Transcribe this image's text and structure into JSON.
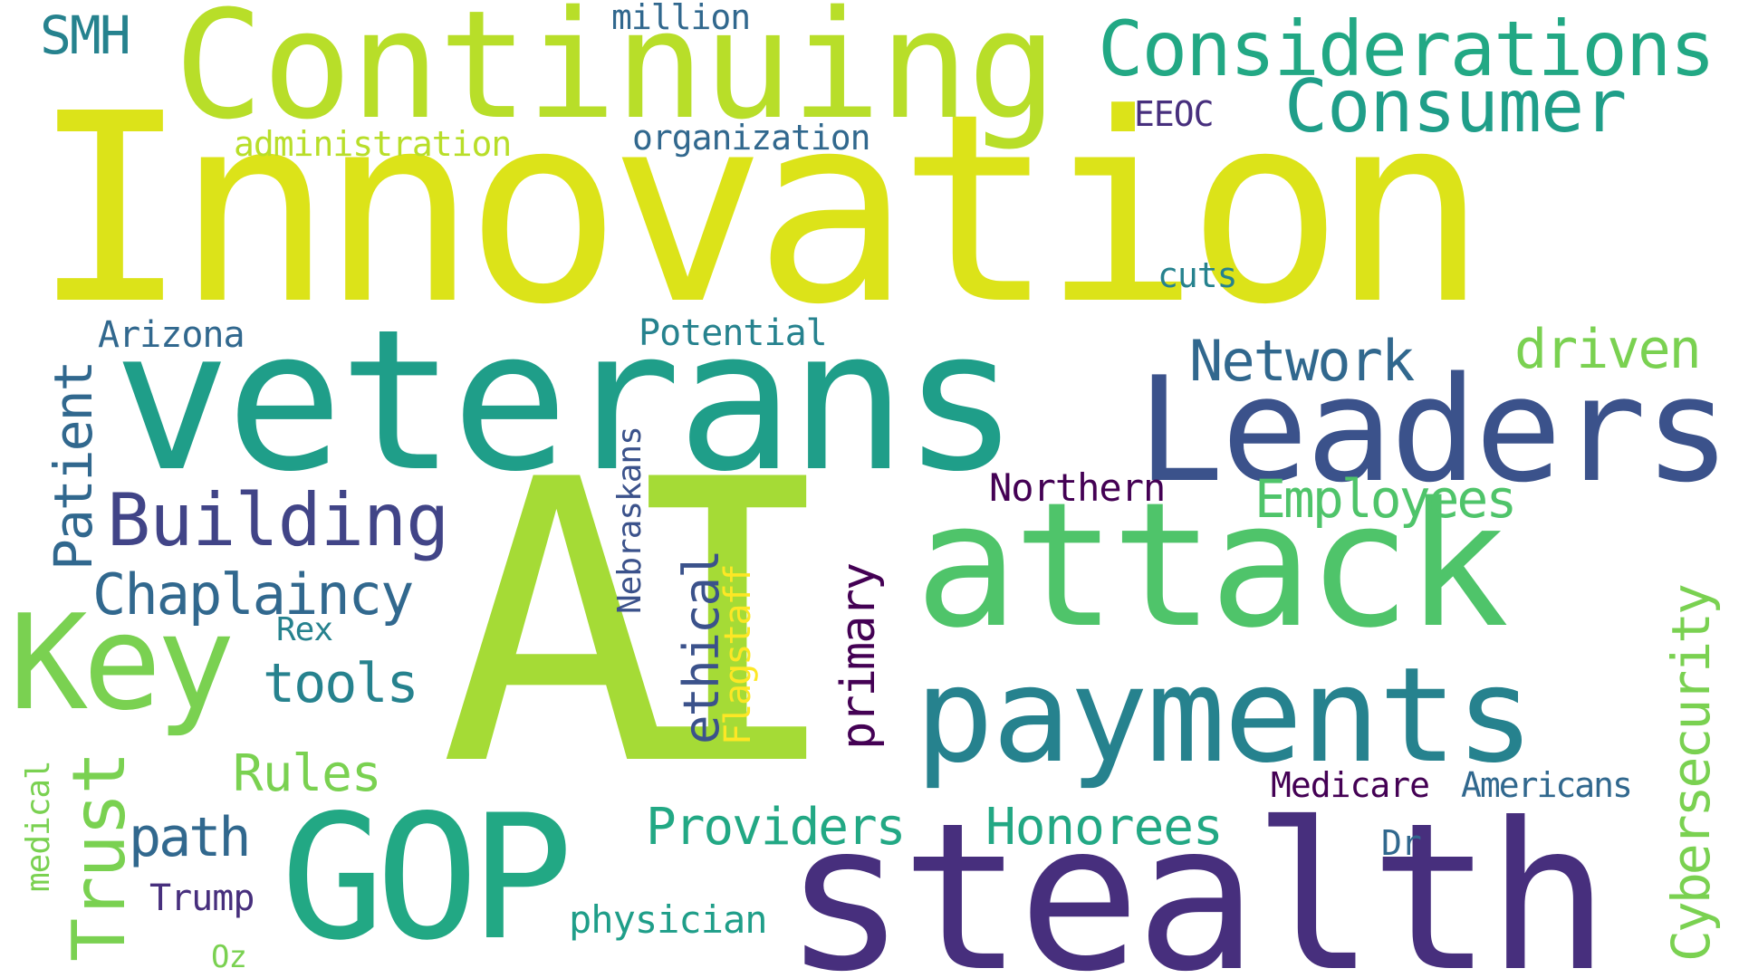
{
  "palette": {
    "yellow": "#dce319",
    "yellow_green": "#b8de29",
    "lime": "#a5db36",
    "light_green": "#7ad151",
    "green": "#4fc46a",
    "teal_green": "#22a884",
    "teal": "#1f9e89",
    "teal_blue": "#26828e",
    "slate_blue": "#31688e",
    "blue": "#3b528b",
    "indigo": "#414487",
    "purple": "#472f7d",
    "dark_purple": "#440154"
  },
  "words": [
    {
      "id": "innovation",
      "text": "Innovation",
      "color": "#dce319"
    },
    {
      "id": "ai",
      "text": "AI",
      "color": "#a5db36"
    },
    {
      "id": "continuing",
      "text": "Continuing",
      "color": "#b8de29"
    },
    {
      "id": "veterans",
      "text": "veterans",
      "color": "#1f9e89"
    },
    {
      "id": "leaders",
      "text": "Leaders",
      "color": "#3b528b"
    },
    {
      "id": "attack",
      "text": "attack",
      "color": "#4fc46a"
    },
    {
      "id": "payments",
      "text": "payments",
      "color": "#26828e"
    },
    {
      "id": "stealth",
      "text": "stealth",
      "color": "#472f7d"
    },
    {
      "id": "gop",
      "text": "GOP",
      "color": "#22a884"
    },
    {
      "id": "key",
      "text": "Key",
      "color": "#7ad151"
    },
    {
      "id": "considerations",
      "text": "Considerations",
      "color": "#22a884"
    },
    {
      "id": "consumer",
      "text": "Consumer",
      "color": "#1f9e89"
    },
    {
      "id": "building",
      "text": "Building",
      "color": "#414487"
    },
    {
      "id": "chaplaincy",
      "text": "Chaplaincy",
      "color": "#31688e"
    },
    {
      "id": "tools",
      "text": "tools",
      "color": "#26828e"
    },
    {
      "id": "rules",
      "text": "Rules",
      "color": "#7ad151"
    },
    {
      "id": "path",
      "text": "path",
      "color": "#31688e"
    },
    {
      "id": "trust",
      "text": "Trust",
      "color": "#7ad151"
    },
    {
      "id": "patient",
      "text": "Patient",
      "color": "#31688e"
    },
    {
      "id": "network",
      "text": "Network",
      "color": "#31688e"
    },
    {
      "id": "driven",
      "text": "driven",
      "color": "#7ad151"
    },
    {
      "id": "employees",
      "text": "Employees",
      "color": "#4fc46a"
    },
    {
      "id": "providers",
      "text": "Providers",
      "color": "#22a884"
    },
    {
      "id": "honorees",
      "text": "Honorees",
      "color": "#22a884"
    },
    {
      "id": "cybersecurity",
      "text": "Cybersecurity",
      "color": "#7ad151"
    },
    {
      "id": "ethical",
      "text": "ethical",
      "color": "#3b528b"
    },
    {
      "id": "primary",
      "text": "primary",
      "color": "#440154"
    },
    {
      "id": "flagstaff",
      "text": "Flagstaff",
      "color": "#fde725"
    },
    {
      "id": "nebraskans",
      "text": "Nebraskans",
      "color": "#3b528b"
    },
    {
      "id": "northern",
      "text": "Northern",
      "color": "#440154"
    },
    {
      "id": "medicare",
      "text": "Medicare",
      "color": "#440154"
    },
    {
      "id": "americans",
      "text": "Americans",
      "color": "#31688e"
    },
    {
      "id": "dr",
      "text": "Dr",
      "color": "#31688e"
    },
    {
      "id": "physician",
      "text": "physician",
      "color": "#1f9e89"
    },
    {
      "id": "trump",
      "text": "Trump",
      "color": "#472f7d"
    },
    {
      "id": "oz",
      "text": "Oz",
      "color": "#7ad151"
    },
    {
      "id": "medical",
      "text": "medical",
      "color": "#7ad151"
    },
    {
      "id": "rex",
      "text": "Rex",
      "color": "#26828e"
    },
    {
      "id": "arizona",
      "text": "Arizona",
      "color": "#31688e"
    },
    {
      "id": "potential",
      "text": "Potential",
      "color": "#26828e"
    },
    {
      "id": "cuts",
      "text": "cuts",
      "color": "#26828e"
    },
    {
      "id": "organization",
      "text": "organization",
      "color": "#31688e"
    },
    {
      "id": "administration",
      "text": "administration",
      "color": "#b8de29"
    },
    {
      "id": "eeoc",
      "text": "EEOC",
      "color": "#472f7d"
    },
    {
      "id": "million",
      "text": "million",
      "color": "#31688e"
    },
    {
      "id": "smh",
      "text": "SMH",
      "color": "#26828e"
    }
  ]
}
